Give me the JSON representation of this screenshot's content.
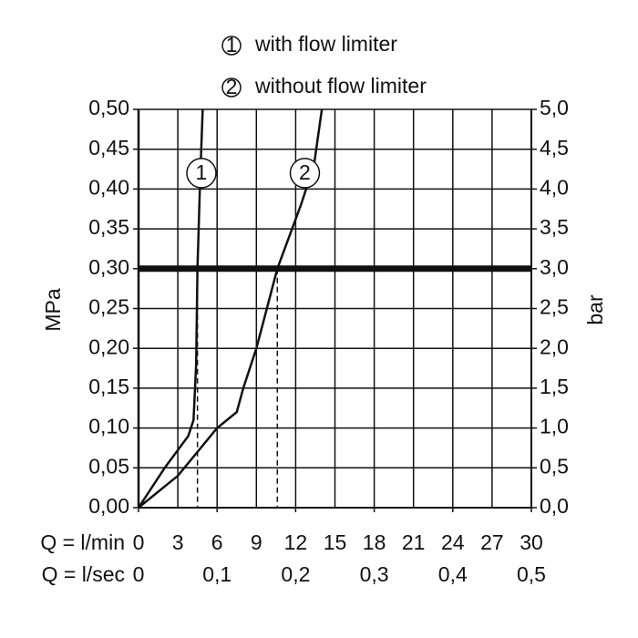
{
  "chart_data": {
    "type": "line",
    "x_label": "Q = l/min",
    "x2_label": "Q = l/sec",
    "y_label": "MPa",
    "y2_label": "bar",
    "xlim": [
      0,
      30
    ],
    "xticks": [
      0,
      3,
      6,
      9,
      12,
      15,
      18,
      21,
      24,
      27,
      30
    ],
    "x2lim": [
      0,
      0.5
    ],
    "x2ticks": [
      0,
      {
        "value": 0.1,
        "label": "0,1"
      },
      {
        "value": 0.2,
        "label": "0,2"
      },
      {
        "value": 0.3,
        "label": "0,3"
      },
      {
        "value": 0.4,
        "label": "0,4"
      },
      {
        "value": 0.5,
        "label": "0,5"
      }
    ],
    "ylim": [
      0,
      0.5
    ],
    "yticks": [
      {
        "value": 0,
        "label": "0,00"
      },
      {
        "value": 0.05,
        "label": "0,05"
      },
      {
        "value": 0.1,
        "label": "0,10"
      },
      {
        "value": 0.15,
        "label": "0,15"
      },
      {
        "value": 0.2,
        "label": "0,20"
      },
      {
        "value": 0.25,
        "label": "0,25"
      },
      {
        "value": 0.3,
        "label": "0,30"
      },
      {
        "value": 0.35,
        "label": "0,35"
      },
      {
        "value": 0.4,
        "label": "0,40"
      },
      {
        "value": 0.45,
        "label": "0,45"
      },
      {
        "value": 0.5,
        "label": "0,50"
      }
    ],
    "y2lim": [
      0,
      5
    ],
    "y2ticks": [
      {
        "value": 0,
        "label": "0,0"
      },
      {
        "value": 0.5,
        "label": "0,5"
      },
      {
        "value": 1,
        "label": "1,0"
      },
      {
        "value": 1.5,
        "label": "1,5"
      },
      {
        "value": 2,
        "label": "2,0"
      },
      {
        "value": 2.5,
        "label": "2,5"
      },
      {
        "value": 3,
        "label": "3,0"
      },
      {
        "value": 3.5,
        "label": "3,5"
      },
      {
        "value": 4,
        "label": "4,0"
      },
      {
        "value": 4.5,
        "label": "4,5"
      },
      {
        "value": 5,
        "label": "5,0"
      }
    ],
    "grid": true,
    "color": "#111111",
    "reference_y": 0.3,
    "dashed_x": [
      4.5,
      10.6
    ],
    "series": [
      {
        "name": "with flow limiter",
        "label": "1",
        "label_at": 4.8,
        "label_y": 0.42,
        "color": "#111111",
        "x": [
          0,
          2,
          3.8,
          4.2,
          4.4,
          4.5,
          4.7,
          4.9
        ],
        "values": [
          0,
          0.05,
          0.09,
          0.11,
          0.18,
          0.3,
          0.41,
          0.5
        ]
      },
      {
        "name": "without flow limiter",
        "label": "2",
        "label_at": 12.7,
        "label_y": 0.42,
        "color": "#111111",
        "x": [
          0,
          3,
          6,
          7.5,
          8,
          9,
          10.6,
          12.4,
          13.4,
          14
        ],
        "values": [
          0,
          0.04,
          0.1,
          0.12,
          0.15,
          0.2,
          0.3,
          0.38,
          0.43,
          0.5
        ]
      }
    ]
  }
}
